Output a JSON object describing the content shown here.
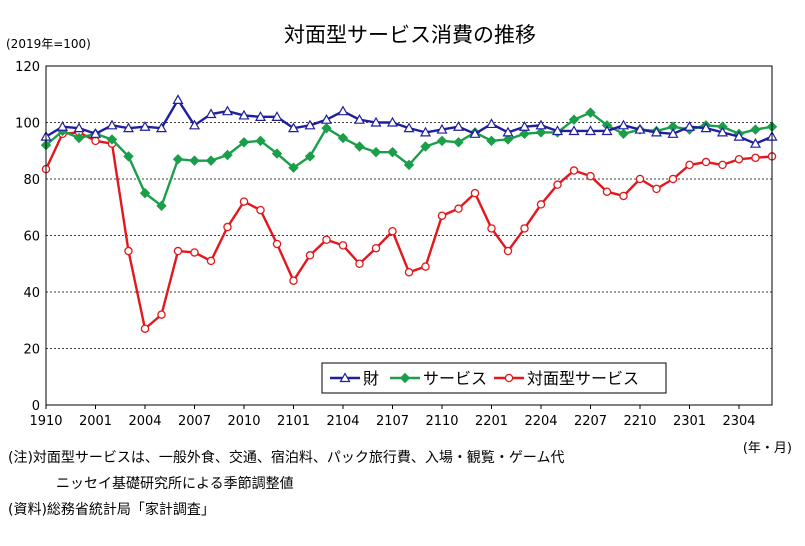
{
  "chart_data": {
    "type": "line",
    "title": "対面型サービス消費の推移",
    "unit_label": "(2019年=100)",
    "xlabel": "(年・月)",
    "ylim": [
      0,
      120
    ],
    "y_ticks": [
      0,
      20,
      40,
      60,
      80,
      100,
      120
    ],
    "grid": true,
    "legend_position": "bottom-right",
    "x_tick_labels": [
      "1910",
      "2001",
      "2004",
      "2007",
      "2010",
      "2101",
      "2104",
      "2107",
      "2110",
      "2201",
      "2204",
      "2207",
      "2210",
      "2301",
      "2304"
    ],
    "x": [
      "1910",
      "1911",
      "1912",
      "2001",
      "2002",
      "2003",
      "2004",
      "2005",
      "2006",
      "2007",
      "2008",
      "2009",
      "2010",
      "2011",
      "2012",
      "2101",
      "2102",
      "2103",
      "2104",
      "2105",
      "2106",
      "2107",
      "2108",
      "2109",
      "2110",
      "2111",
      "2112",
      "2201",
      "2202",
      "2203",
      "2204",
      "2205",
      "2206",
      "2207",
      "2208",
      "2209",
      "2210",
      "2211",
      "2212",
      "2301",
      "2302",
      "2303",
      "2304",
      "2305",
      "2306"
    ],
    "series": [
      {
        "name": "財",
        "color": "#1f1f9f",
        "marker": "triangle",
        "values": [
          95,
          98.5,
          98,
          96,
          99,
          98,
          98.5,
          98,
          108,
          99,
          103,
          104,
          102.5,
          102,
          102,
          98,
          99,
          101,
          104,
          101,
          100,
          100,
          98,
          96.5,
          97.5,
          98.5,
          96,
          99.5,
          96.5,
          98.5,
          99,
          97,
          97,
          97,
          97,
          99,
          97.5,
          96.5,
          96,
          98.5,
          98,
          96.5,
          95,
          92.5,
          95
        ]
      },
      {
        "name": "サービス",
        "color": "#1a9e4a",
        "marker": "diamond",
        "values": [
          92,
          97,
          94.5,
          96,
          94,
          88,
          75,
          70.5,
          87,
          86.5,
          86.5,
          88.5,
          93,
          93.5,
          89,
          84,
          88,
          98,
          94.5,
          91.5,
          89.5,
          89.5,
          85,
          91.5,
          93.5,
          93,
          96.5,
          93.5,
          94,
          96,
          96.5,
          96.5,
          101,
          103.5,
          99,
          96,
          97.5,
          97,
          98.5,
          97.5,
          99,
          98.5,
          96,
          97.5,
          98.5
        ]
      },
      {
        "name": "対面型サービス",
        "color": "#e3181c",
        "marker": "circle",
        "values": [
          83.5,
          96,
          96.5,
          93.5,
          92.5,
          54.5,
          27,
          32,
          54.5,
          54,
          51,
          63,
          72,
          69,
          57,
          44,
          53,
          58.5,
          56.5,
          50,
          55.5,
          61.5,
          47,
          49,
          67,
          69.5,
          75,
          62.5,
          54.5,
          62.5,
          71,
          78,
          83,
          81,
          75.5,
          74,
          80,
          76.5,
          80,
          85,
          86,
          85,
          87,
          87.5,
          88
        ]
      }
    ]
  },
  "notes": {
    "note_line1": "(注)対面型サービスは、一般外食、交通、宿泊料、パック旅行費、入場・観覧・ゲーム代",
    "note_line2": "ニッセイ基礎研究所による季節調整値",
    "source": "(資料)総務省統計局「家計調査」"
  }
}
